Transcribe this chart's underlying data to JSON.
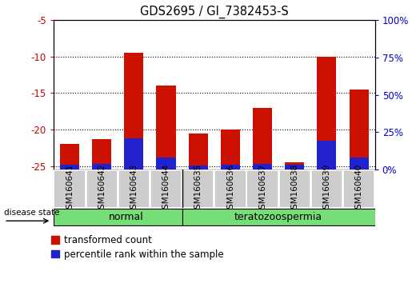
{
  "title": "GDS2695 / GI_7382453-S",
  "samples": [
    "GSM160641",
    "GSM160642",
    "GSM160643",
    "GSM160644",
    "GSM160635",
    "GSM160636",
    "GSM160637",
    "GSM160638",
    "GSM160639",
    "GSM160640"
  ],
  "red_values": [
    -22.0,
    -21.3,
    -9.5,
    -14.0,
    -20.5,
    -20.0,
    -17.0,
    -24.5,
    -10.0,
    -14.5
  ],
  "blue_values": [
    -24.8,
    -24.7,
    -21.2,
    -23.8,
    -24.9,
    -24.8,
    -24.7,
    -24.8,
    -21.5,
    -23.8
  ],
  "ylim_left": [
    -25.5,
    -5
  ],
  "yticks_left": [
    -25,
    -20,
    -15,
    -10,
    -5
  ],
  "yticks_right": [
    0,
    25,
    50,
    75,
    100
  ],
  "ylabel_left_color": "#cc0000",
  "ylabel_right_color": "#0000cc",
  "bar_width": 0.6,
  "red_color": "#cc1100",
  "blue_color": "#2222cc",
  "normal_label": "normal",
  "terato_label": "teratozoospermia",
  "disease_label": "disease state",
  "legend_red": "transformed count",
  "legend_blue": "percentile rank within the sample",
  "bar_bottom": -25.5,
  "bg_color": "#ffffff",
  "tick_area_color": "#cccccc",
  "group_bar_color": "#77dd77",
  "grid_linestyle": "dotted",
  "grid_linewidth": 0.8,
  "grid_color": "#000000"
}
